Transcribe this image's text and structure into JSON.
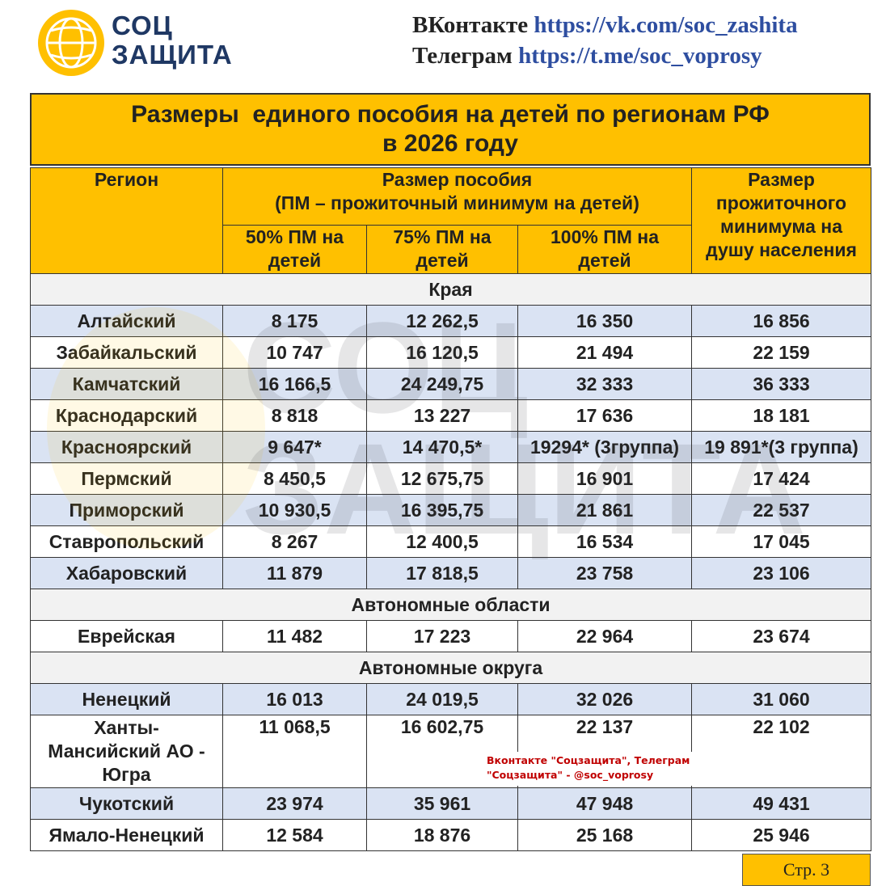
{
  "header": {
    "logo_lines": [
      "СОЦ",
      "ЗАЩИТА"
    ],
    "links": [
      {
        "label": "ВКонтакте",
        "url": "https://vk.com/soc_zashita"
      },
      {
        "label": "Телеграм",
        "url": "https://t.me/soc_voprosy"
      }
    ]
  },
  "title": [
    "Размеры  единого пособия на детей по регионам РФ",
    "в 2026 году"
  ],
  "watermark": [
    "СОЦ",
    "ЗАЩИТА"
  ],
  "table": {
    "columns": {
      "region": "Регион",
      "benefit": "Размер пособия",
      "benefit_note": "(ПМ – прожиточный минимум на детей)",
      "sub": [
        "50% ПМ на детей",
        "75% ПМ на детей",
        "100% ПМ на детей"
      ],
      "subsistence": "Размер прожиточного минимума на душу населения"
    },
    "sections": [
      {
        "name": "Края",
        "rows": [
          [
            "Алтайский",
            "8 175",
            "12 262,5",
            "16 350",
            "16 856"
          ],
          [
            "Забайкальский",
            "10 747",
            "16 120,5",
            "21 494",
            "22 159"
          ],
          [
            "Камчатский",
            "16 166,5",
            "24 249,75",
            "32 333",
            "36 333"
          ],
          [
            "Краснодарский",
            "8 818",
            "13 227",
            "17 636",
            "18 181"
          ],
          [
            "Красноярский",
            "9 647*",
            "14 470,5*",
            "19294* (3группа)",
            "19 891*(3 группа)"
          ],
          [
            "Пермский",
            "8 450,5",
            "12 675,75",
            "16 901",
            "17 424"
          ],
          [
            "Приморский",
            "10 930,5",
            "16 395,75",
            "21 861",
            "22 537"
          ],
          [
            "Ставропольский",
            "8 267",
            "12 400,5",
            "16 534",
            "17 045"
          ],
          [
            "Хабаровский",
            "11 879",
            "17 818,5",
            "23 758",
            "23 106"
          ]
        ]
      },
      {
        "name": "Автономные области",
        "rows": [
          [
            "Еврейская",
            "11 482",
            "17 223",
            "22 964",
            "23 674"
          ]
        ]
      },
      {
        "name": "Автономные округа",
        "rows": [
          [
            "Ненецкий",
            "16 013",
            "24 019,5",
            "32 026",
            "31 060"
          ],
          [
            "Ханты-Мансийский АО - Югра",
            "11 068,5",
            "16 602,75",
            "22 137",
            "22 102"
          ],
          [
            "Чукотский",
            "23 974",
            "35 961",
            "47 948",
            "49 431"
          ],
          [
            "Ямало-Ненецкий",
            "12 584",
            "18 876",
            "25 168",
            "25 946"
          ]
        ]
      }
    ]
  },
  "stamp": [
    "Вконтакте \"Соцзащита\", Телеграм",
    "\"Соцзащита\" - @soc_voprosy"
  ],
  "page_label": "Стр. 3"
}
